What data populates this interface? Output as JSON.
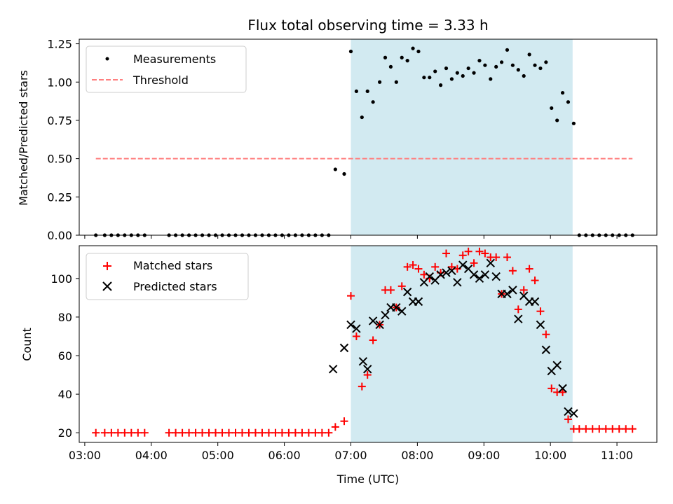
{
  "title": "Flux total observing time = 3.33 h",
  "colors": {
    "span": "#add8e6",
    "measurements": "#000000",
    "threshold": "#ff7f7f",
    "matched": "#ff0000",
    "predicted": "#000000"
  },
  "chart_data": [
    {
      "type": "scatter",
      "ylabel": "Matched/Predicted stars",
      "ylim": [
        0,
        1.28
      ],
      "yticks": [
        0.0,
        0.25,
        0.5,
        0.75,
        1.0,
        1.25
      ],
      "ytick_labels": [
        "0.00",
        "0.25",
        "0.50",
        "0.75",
        "1.00",
        "1.25"
      ],
      "xlim": [
        "02:55",
        "11:36"
      ],
      "shaded_span": [
        "07:00",
        "10:20"
      ],
      "legend_position": "top-left",
      "series": [
        {
          "name": "Measurements",
          "marker": "dot",
          "points": [
            [
              "03:10",
              0
            ],
            [
              "03:18",
              0
            ],
            [
              "03:24",
              0
            ],
            [
              "03:30",
              0
            ],
            [
              "03:36",
              0
            ],
            [
              "03:42",
              0
            ],
            [
              "03:48",
              0
            ],
            [
              "03:54",
              0
            ],
            [
              "04:16",
              0
            ],
            [
              "04:22",
              0
            ],
            [
              "04:28",
              0
            ],
            [
              "04:34",
              0
            ],
            [
              "04:40",
              0
            ],
            [
              "04:46",
              0
            ],
            [
              "04:52",
              0
            ],
            [
              "04:58",
              0
            ],
            [
              "05:04",
              0
            ],
            [
              "05:10",
              0
            ],
            [
              "05:16",
              0
            ],
            [
              "05:22",
              0
            ],
            [
              "05:28",
              0
            ],
            [
              "05:34",
              0
            ],
            [
              "05:40",
              0
            ],
            [
              "05:46",
              0
            ],
            [
              "05:52",
              0
            ],
            [
              "05:58",
              0
            ],
            [
              "06:04",
              0
            ],
            [
              "06:10",
              0
            ],
            [
              "06:16",
              0
            ],
            [
              "06:22",
              0
            ],
            [
              "06:28",
              0
            ],
            [
              "06:34",
              0
            ],
            [
              "06:40",
              0
            ],
            [
              "06:46",
              0.43
            ],
            [
              "06:54",
              0.4
            ],
            [
              "07:00",
              1.2
            ],
            [
              "07:05",
              0.94
            ],
            [
              "07:10",
              0.77
            ],
            [
              "07:15",
              0.94
            ],
            [
              "07:20",
              0.87
            ],
            [
              "07:26",
              1.0
            ],
            [
              "07:31",
              1.16
            ],
            [
              "07:36",
              1.1
            ],
            [
              "07:41",
              1.0
            ],
            [
              "07:46",
              1.16
            ],
            [
              "07:51",
              1.14
            ],
            [
              "07:56",
              1.22
            ],
            [
              "08:01",
              1.2
            ],
            [
              "08:06",
              1.03
            ],
            [
              "08:11",
              1.03
            ],
            [
              "08:16",
              1.07
            ],
            [
              "08:21",
              0.98
            ],
            [
              "08:26",
              1.09
            ],
            [
              "08:31",
              1.02
            ],
            [
              "08:36",
              1.06
            ],
            [
              "08:41",
              1.04
            ],
            [
              "08:46",
              1.09
            ],
            [
              "08:51",
              1.06
            ],
            [
              "08:56",
              1.14
            ],
            [
              "09:01",
              1.11
            ],
            [
              "09:06",
              1.02
            ],
            [
              "09:11",
              1.1
            ],
            [
              "09:16",
              1.13
            ],
            [
              "09:21",
              1.21
            ],
            [
              "09:26",
              1.11
            ],
            [
              "09:31",
              1.08
            ],
            [
              "09:36",
              1.04
            ],
            [
              "09:41",
              1.18
            ],
            [
              "09:46",
              1.11
            ],
            [
              "09:51",
              1.09
            ],
            [
              "09:56",
              1.13
            ],
            [
              "10:01",
              0.83
            ],
            [
              "10:06",
              0.75
            ],
            [
              "10:11",
              0.93
            ],
            [
              "10:16",
              0.87
            ],
            [
              "10:21",
              0.73
            ],
            [
              "10:26",
              0
            ],
            [
              "10:32",
              0
            ],
            [
              "10:38",
              0
            ],
            [
              "10:44",
              0
            ],
            [
              "10:50",
              0
            ],
            [
              "10:56",
              0
            ],
            [
              "11:02",
              0
            ],
            [
              "11:08",
              0
            ],
            [
              "11:14",
              0
            ]
          ]
        },
        {
          "name": "Threshold",
          "marker": "dashed-line",
          "points": [
            [
              "03:10",
              0.5
            ],
            [
              "11:14",
              0.5
            ]
          ]
        }
      ]
    },
    {
      "type": "scatter",
      "ylabel": "Count",
      "xlabel": "Time (UTC)",
      "ylim": [
        15,
        117
      ],
      "yticks": [
        20,
        40,
        60,
        80,
        100
      ],
      "ytick_labels": [
        "20",
        "40",
        "60",
        "80",
        "100"
      ],
      "xlim": [
        "02:55",
        "11:36"
      ],
      "xticks": [
        "03:00",
        "04:00",
        "05:00",
        "06:00",
        "07:00",
        "08:00",
        "09:00",
        "10:00",
        "11:00"
      ],
      "xtick_labels": [
        "03:00",
        "04:00",
        "05:00",
        "06:00",
        "07:00",
        "08:00",
        "09:00",
        "10:00",
        "11:00"
      ],
      "shaded_span": [
        "07:00",
        "10:20"
      ],
      "legend_position": "top-left",
      "series": [
        {
          "name": "Matched stars",
          "marker": "plus",
          "points": [
            [
              "03:10",
              20
            ],
            [
              "03:18",
              20
            ],
            [
              "03:24",
              20
            ],
            [
              "03:30",
              20
            ],
            [
              "03:36",
              20
            ],
            [
              "03:42",
              20
            ],
            [
              "03:48",
              20
            ],
            [
              "03:54",
              20
            ],
            [
              "04:16",
              20
            ],
            [
              "04:22",
              20
            ],
            [
              "04:28",
              20
            ],
            [
              "04:34",
              20
            ],
            [
              "04:40",
              20
            ],
            [
              "04:46",
              20
            ],
            [
              "04:52",
              20
            ],
            [
              "04:58",
              20
            ],
            [
              "05:04",
              20
            ],
            [
              "05:10",
              20
            ],
            [
              "05:16",
              20
            ],
            [
              "05:22",
              20
            ],
            [
              "05:28",
              20
            ],
            [
              "05:34",
              20
            ],
            [
              "05:40",
              20
            ],
            [
              "05:46",
              20
            ],
            [
              "05:52",
              20
            ],
            [
              "05:58",
              20
            ],
            [
              "06:04",
              20
            ],
            [
              "06:10",
              20
            ],
            [
              "06:16",
              20
            ],
            [
              "06:22",
              20
            ],
            [
              "06:28",
              20
            ],
            [
              "06:34",
              20
            ],
            [
              "06:40",
              20
            ],
            [
              "06:46",
              23
            ],
            [
              "06:54",
              26
            ],
            [
              "07:00",
              91
            ],
            [
              "07:05",
              70
            ],
            [
              "07:10",
              44
            ],
            [
              "07:15",
              50
            ],
            [
              "07:20",
              68
            ],
            [
              "07:26",
              76
            ],
            [
              "07:31",
              94
            ],
            [
              "07:36",
              94
            ],
            [
              "07:41",
              85
            ],
            [
              "07:46",
              96
            ],
            [
              "07:51",
              106
            ],
            [
              "07:56",
              107
            ],
            [
              "08:01",
              105
            ],
            [
              "08:06",
              102
            ],
            [
              "08:11",
              100
            ],
            [
              "08:16",
              106
            ],
            [
              "08:21",
              103
            ],
            [
              "08:26",
              113
            ],
            [
              "08:31",
              106
            ],
            [
              "08:36",
              105
            ],
            [
              "08:41",
              112
            ],
            [
              "08:46",
              114
            ],
            [
              "08:51",
              108
            ],
            [
              "08:56",
              114
            ],
            [
              "09:01",
              113
            ],
            [
              "09:06",
              111
            ],
            [
              "09:11",
              111
            ],
            [
              "09:16",
              92
            ],
            [
              "09:21",
              111
            ],
            [
              "09:26",
              104
            ],
            [
              "09:31",
              84
            ],
            [
              "09:36",
              94
            ],
            [
              "09:41",
              105
            ],
            [
              "09:46",
              99
            ],
            [
              "09:51",
              83
            ],
            [
              "09:56",
              71
            ],
            [
              "10:01",
              43
            ],
            [
              "10:06",
              41
            ],
            [
              "10:11",
              41
            ],
            [
              "10:16",
              27
            ],
            [
              "10:21",
              22
            ],
            [
              "10:26",
              22
            ],
            [
              "10:32",
              22
            ],
            [
              "10:38",
              22
            ],
            [
              "10:44",
              22
            ],
            [
              "10:50",
              22
            ],
            [
              "10:56",
              22
            ],
            [
              "11:02",
              22
            ],
            [
              "11:08",
              22
            ],
            [
              "11:14",
              22
            ]
          ]
        },
        {
          "name": "Predicted stars",
          "marker": "x",
          "points": [
            [
              "06:44",
              53
            ],
            [
              "06:54",
              64
            ],
            [
              "07:00",
              76
            ],
            [
              "07:05",
              74
            ],
            [
              "07:11",
              57
            ],
            [
              "07:15",
              53
            ],
            [
              "07:20",
              78
            ],
            [
              "07:26",
              76
            ],
            [
              "07:31",
              81
            ],
            [
              "07:36",
              85
            ],
            [
              "07:41",
              85
            ],
            [
              "07:46",
              83
            ],
            [
              "07:51",
              93
            ],
            [
              "07:56",
              88
            ],
            [
              "08:01",
              88
            ],
            [
              "08:06",
              98
            ],
            [
              "08:11",
              101
            ],
            [
              "08:16",
              99
            ],
            [
              "08:21",
              102
            ],
            [
              "08:26",
              103
            ],
            [
              "08:31",
              104
            ],
            [
              "08:36",
              98
            ],
            [
              "08:41",
              107
            ],
            [
              "08:46",
              105
            ],
            [
              "08:51",
              102
            ],
            [
              "08:56",
              100
            ],
            [
              "09:01",
              102
            ],
            [
              "09:06",
              108
            ],
            [
              "09:11",
              101
            ],
            [
              "09:16",
              92
            ],
            [
              "09:21",
              92
            ],
            [
              "09:26",
              94
            ],
            [
              "09:31",
              79
            ],
            [
              "09:36",
              91
            ],
            [
              "09:41",
              88
            ],
            [
              "09:46",
              88
            ],
            [
              "09:51",
              76
            ],
            [
              "09:56",
              63
            ],
            [
              "10:01",
              52
            ],
            [
              "10:06",
              55
            ],
            [
              "10:11",
              43
            ],
            [
              "10:16",
              31
            ],
            [
              "10:21",
              30
            ]
          ]
        }
      ]
    }
  ]
}
